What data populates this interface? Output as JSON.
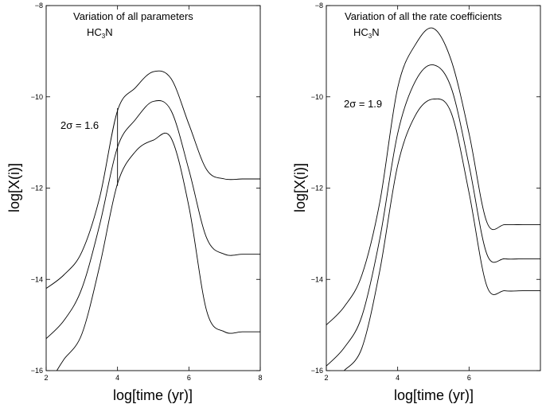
{
  "chart_data": [
    {
      "type": "line",
      "title": "Variation of all parameters",
      "species": "HC",
      "species_sub": "3",
      "species_tail": "N",
      "xlabel": "log[time (yr)]",
      "ylabel": "log[X(i)]",
      "xlim": [
        2,
        8
      ],
      "ylim": [
        -16,
        -8
      ],
      "xticks": [
        2,
        4,
        6,
        8
      ],
      "yticks": [
        -16,
        -14,
        -12,
        -10,
        -8
      ],
      "annotation": "2σ = 1.6",
      "marker_x": 4.0,
      "marker_y": [
        -10.25,
        -11.95
      ],
      "series": [
        {
          "x": [
            2,
            2.5,
            3,
            3.5,
            4,
            4.5,
            5,
            5.5,
            6,
            6.5,
            7,
            7.5,
            8
          ],
          "values": [
            -14.2,
            -13.9,
            -13.4,
            -12.2,
            -10.3,
            -9.8,
            -9.45,
            -9.6,
            -10.6,
            -11.6,
            -11.8,
            -11.8,
            -11.8
          ]
        },
        {
          "x": [
            2,
            2.5,
            3,
            3.5,
            4,
            4.5,
            5,
            5.5,
            6,
            6.5,
            7,
            7.5,
            8
          ],
          "values": [
            -15.3,
            -14.9,
            -14.2,
            -12.8,
            -11.1,
            -10.5,
            -10.1,
            -10.3,
            -11.6,
            -13.1,
            -13.45,
            -13.45,
            -13.45
          ]
        },
        {
          "x": [
            2.3,
            2.5,
            3,
            3.5,
            4,
            4.5,
            5,
            5.5,
            6,
            6.5,
            7,
            7.5,
            8
          ],
          "values": [
            -16,
            -15.75,
            -15.2,
            -13.7,
            -11.9,
            -11.2,
            -10.95,
            -10.9,
            -12.4,
            -14.7,
            -15.15,
            -15.15,
            -15.15
          ]
        }
      ]
    },
    {
      "type": "line",
      "title": "Variation of all the rate coefficients",
      "species": "HC",
      "species_sub": "3",
      "species_tail": "N",
      "xlabel": "log[time (yr)]",
      "ylabel": "log[X(i)]",
      "xlim": [
        2,
        8
      ],
      "ylim": [
        -16,
        -8
      ],
      "xticks": [
        2,
        4,
        6
      ],
      "yticks": [
        -16,
        -14,
        -12,
        -10,
        -8
      ],
      "annotation": "2σ = 1.9",
      "series": [
        {
          "x": [
            2,
            2.5,
            3,
            3.5,
            4,
            4.5,
            5,
            5.5,
            6,
            6.5,
            7,
            7.5,
            8
          ],
          "values": [
            -15.0,
            -14.6,
            -13.9,
            -12.3,
            -9.8,
            -8.85,
            -8.5,
            -9.2,
            -10.8,
            -12.75,
            -12.8,
            -12.8,
            -12.8
          ]
        },
        {
          "x": [
            2,
            2.5,
            3,
            3.5,
            4,
            4.5,
            5,
            5.5,
            6,
            6.5,
            7,
            7.5,
            8
          ],
          "values": [
            -15.9,
            -15.5,
            -14.8,
            -13.1,
            -10.8,
            -9.65,
            -9.3,
            -9.8,
            -11.5,
            -13.45,
            -13.55,
            -13.55,
            -13.55
          ]
        },
        {
          "x": [
            2.5,
            3,
            3.5,
            4,
            4.5,
            5,
            5.5,
            6,
            6.5,
            7,
            7.5,
            8
          ],
          "values": [
            -16,
            -15.5,
            -13.8,
            -11.5,
            -10.4,
            -10.05,
            -10.35,
            -12.1,
            -14.15,
            -14.25,
            -14.25,
            -14.25
          ]
        }
      ]
    }
  ]
}
